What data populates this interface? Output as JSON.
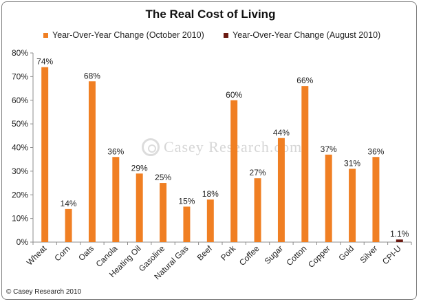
{
  "chart_data": {
    "type": "bar",
    "title": "The Real Cost of Living",
    "categories": [
      "Wheat",
      "Corn",
      "Oats",
      "Canola",
      "Heating Oil",
      "Gasoline",
      "Natural Gas",
      "Beef",
      "Pork",
      "Coffee",
      "Sugar",
      "Cotton",
      "Copper",
      "Gold",
      "Silver",
      "CPI-U"
    ],
    "series": [
      {
        "name": "Year-Over-Year Change (October 2010)",
        "color": "#f07f23",
        "values": [
          74,
          14,
          68,
          36,
          29,
          25,
          15,
          18,
          60,
          27,
          44,
          66,
          37,
          31,
          36,
          null
        ]
      },
      {
        "name": "Year-Over-Year Change (August 2010)",
        "color": "#6b1a12",
        "values": [
          null,
          null,
          null,
          null,
          null,
          null,
          null,
          null,
          null,
          null,
          null,
          null,
          null,
          null,
          null,
          1.1
        ]
      }
    ],
    "data_labels": [
      "74%",
      "14%",
      "68%",
      "36%",
      "29%",
      "25%",
      "15%",
      "18%",
      "60%",
      "27%",
      "44%",
      "66%",
      "37%",
      "31%",
      "36%",
      "1.1%"
    ],
    "y_ticks": [
      "0%",
      "10%",
      "20%",
      "30%",
      "40%",
      "50%",
      "60%",
      "70%",
      "80%"
    ],
    "ylim": [
      0,
      80
    ],
    "grid": false,
    "legend_placement": "top"
  },
  "watermark": "Casey Research.com",
  "copyright": "© Casey Research 2010"
}
